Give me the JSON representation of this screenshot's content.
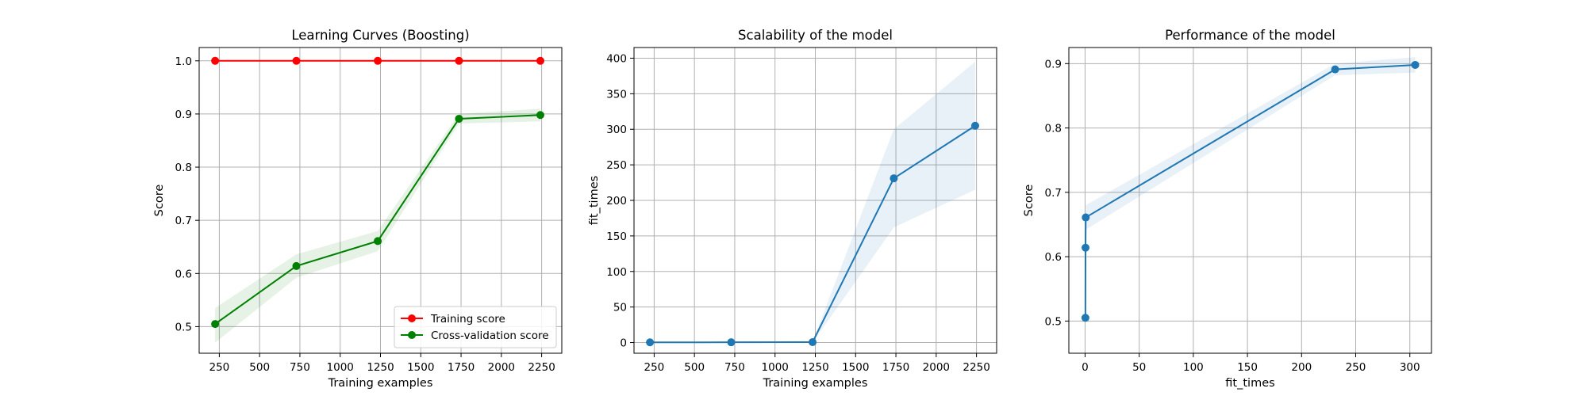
{
  "chart_data": [
    {
      "type": "line",
      "title": "Learning Curves (Boosting)",
      "xlabel": "Training examples",
      "ylabel": "Score",
      "xlim": [
        125,
        2375
      ],
      "ylim": [
        0.45,
        1.025
      ],
      "xticks": [
        250,
        500,
        750,
        1000,
        1250,
        1500,
        1750,
        2000,
        2250
      ],
      "xtick_labels": [
        "250",
        "500",
        "750",
        "1000",
        "1250",
        "1500",
        "1750",
        "2000",
        "2250"
      ],
      "yticks": [
        0.5,
        0.6,
        0.7,
        0.8,
        0.9,
        1.0
      ],
      "ytick_labels": [
        "0.5",
        "0.6",
        "0.7",
        "0.8",
        "0.9",
        "1.0"
      ],
      "grid": true,
      "legend": "lower-right",
      "x": [
        224,
        728,
        1233,
        1737,
        2242
      ],
      "series": [
        {
          "name": "Training score",
          "color": "#ff0000",
          "values": [
            1.0,
            1.0,
            1.0,
            1.0,
            1.0
          ],
          "band_low": [
            1.0,
            1.0,
            1.0,
            1.0,
            1.0
          ],
          "band_high": [
            1.0,
            1.0,
            1.0,
            1.0,
            1.0
          ]
        },
        {
          "name": "Cross-validation score",
          "color": "#008000",
          "values": [
            0.505,
            0.614,
            0.661,
            0.891,
            0.898
          ],
          "band_low": [
            0.47,
            0.592,
            0.642,
            0.882,
            0.886
          ],
          "band_high": [
            0.535,
            0.636,
            0.68,
            0.9,
            0.91
          ]
        }
      ]
    },
    {
      "type": "line",
      "title": "Scalability of the model",
      "xlabel": "Training examples",
      "ylabel": "fit_times",
      "xlim": [
        125,
        2375
      ],
      "ylim": [
        -15,
        415
      ],
      "xticks": [
        250,
        500,
        750,
        1000,
        1250,
        1500,
        1750,
        2000,
        2250
      ],
      "xtick_labels": [
        "250",
        "500",
        "750",
        "1000",
        "1250",
        "1500",
        "1750",
        "2000",
        "2250"
      ],
      "yticks": [
        0,
        50,
        100,
        150,
        200,
        250,
        300,
        350,
        400
      ],
      "ytick_labels": [
        "0",
        "50",
        "100",
        "150",
        "200",
        "250",
        "300",
        "350",
        "400"
      ],
      "grid": true,
      "legend": "none",
      "x": [
        224,
        728,
        1233,
        1737,
        2242
      ],
      "series": [
        {
          "color": "#1f77b4",
          "values": [
            0.3,
            0.4,
            0.6,
            231,
            305
          ],
          "band_low": [
            0.0,
            0.0,
            0.0,
            162,
            215
          ],
          "band_high": [
            0.6,
            0.8,
            1.2,
            300,
            395
          ]
        }
      ]
    },
    {
      "type": "line",
      "title": "Performance of the model",
      "xlabel": "fit_times",
      "ylabel": "Score",
      "xlim": [
        -15,
        320
      ],
      "ylim": [
        0.45,
        0.925
      ],
      "xticks": [
        0,
        50,
        100,
        150,
        200,
        250,
        300
      ],
      "xtick_labels": [
        "0",
        "50",
        "100",
        "150",
        "200",
        "250",
        "300"
      ],
      "yticks": [
        0.5,
        0.6,
        0.7,
        0.8,
        0.9
      ],
      "ytick_labels": [
        "0.5",
        "0.6",
        "0.7",
        "0.8",
        "0.9"
      ],
      "grid": true,
      "legend": "none",
      "x": [
        0.3,
        0.4,
        0.6,
        231,
        305
      ],
      "series": [
        {
          "color": "#1f77b4",
          "values": [
            0.505,
            0.614,
            0.661,
            0.891,
            0.898
          ],
          "band_low": [
            0.47,
            0.592,
            0.642,
            0.882,
            0.886
          ],
          "band_high": [
            0.535,
            0.636,
            0.68,
            0.9,
            0.91
          ]
        }
      ]
    }
  ]
}
